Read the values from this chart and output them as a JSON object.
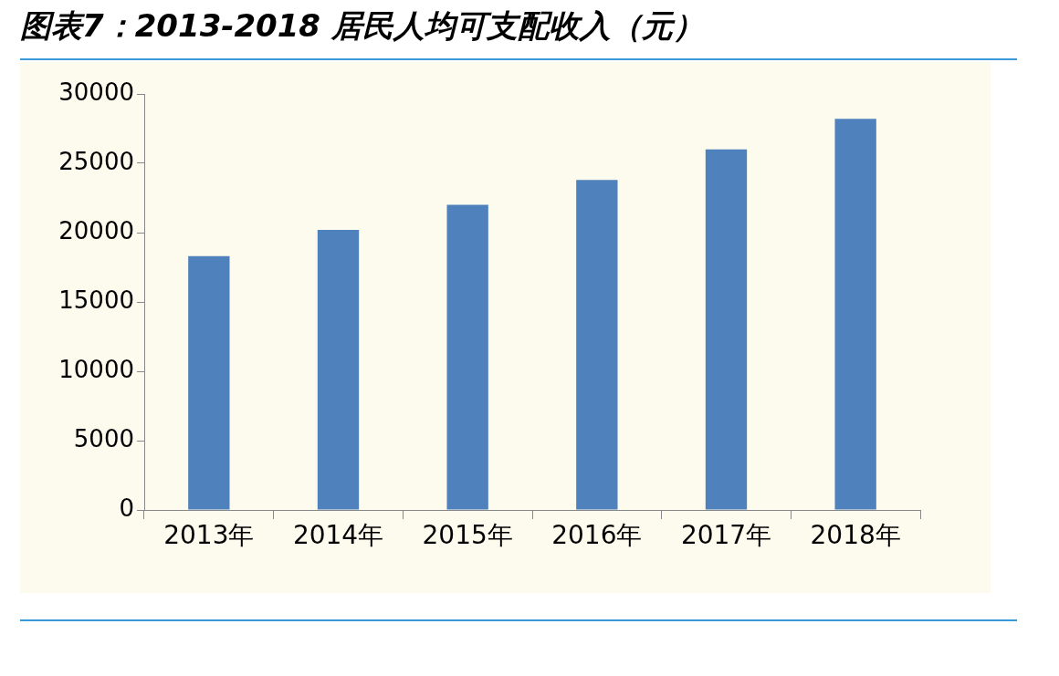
{
  "chart_data": {
    "type": "bar",
    "title": "图表7：2013-2018 居民人均可支配收入（元）",
    "categories": [
      "2013年",
      "2014年",
      "2015年",
      "2016年",
      "2017年",
      "2018年"
    ],
    "values": [
      18300,
      20200,
      22000,
      23800,
      26000,
      28200
    ],
    "color": "#4f81bd",
    "ylim": [
      0,
      30000
    ],
    "yticks": [
      0,
      5000,
      10000,
      15000,
      20000,
      25000,
      30000
    ],
    "grid": false,
    "legend": false
  }
}
